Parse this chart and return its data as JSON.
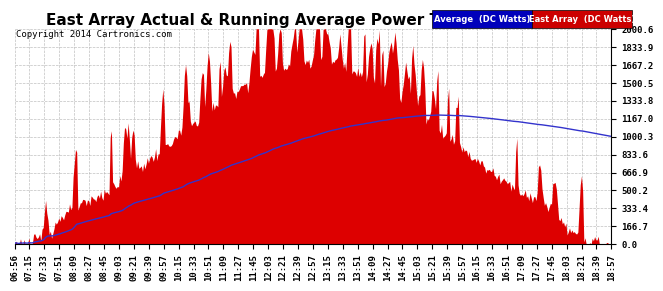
{
  "title": "East Array Actual & Running Average Power Thu Mar 20 19:08",
  "copyright": "Copyright 2014 Cartronics.com",
  "ylabel_right": [
    "0.0",
    "166.7",
    "333.4",
    "500.2",
    "666.9",
    "833.6",
    "1000.3",
    "1167.0",
    "1333.8",
    "1500.5",
    "1667.2",
    "1833.9",
    "2000.6"
  ],
  "ymax": 2000.6,
  "ymin": 0.0,
  "background_color": "#ffffff",
  "plot_bg_color": "#ffffff",
  "grid_color": "#b0b0b0",
  "fill_color": "#dd0000",
  "line_color": "#3333cc",
  "legend_avg_bg": "#0000bb",
  "legend_east_bg": "#cc0000",
  "legend_avg_text": "Average  (DC Watts)",
  "legend_east_text": "East Array  (DC Watts)",
  "title_fontsize": 11,
  "tick_fontsize": 6.5
}
